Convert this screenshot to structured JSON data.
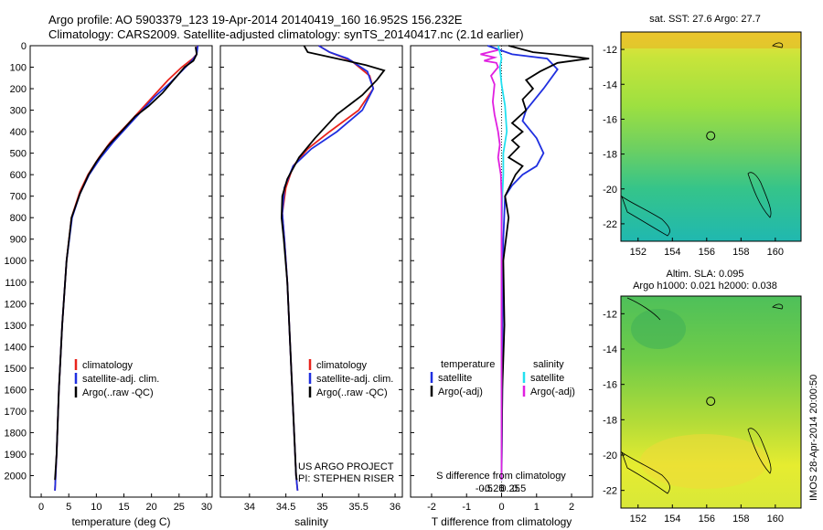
{
  "header": {
    "line1": "Argo profile: AO 5903379_123 19-Apr-2014 20140419_160 16.952S 156.232E",
    "line2": "Climatology: CARS2009. Satellite-adjusted climatology: synTS_20140417.nc (2.1d earlier)"
  },
  "credit": "IMOS 28-Apr-2014 20:00:50",
  "colors": {
    "climatology": "#e8231c",
    "satellite": "#1f2fe0",
    "argo": "#000000",
    "sal_satellite": "#22e0f0",
    "sal_argo": "#e020e0"
  },
  "chart_data": [
    {
      "type": "line",
      "panel": "temperature",
      "xlabel": "temperature (deg C)",
      "xlim": [
        -2,
        31
      ],
      "xticks": [
        0,
        5,
        10,
        15,
        20,
        25,
        30
      ],
      "ylim": [
        2100,
        0
      ],
      "yticks": [
        0,
        100,
        200,
        300,
        400,
        500,
        600,
        700,
        800,
        900,
        1000,
        1100,
        1200,
        1300,
        1400,
        1500,
        1600,
        1700,
        1800,
        1900,
        2000
      ],
      "legend": [
        "climatology",
        "satellite-adj. clim.",
        "Argo(..raw -QC)"
      ],
      "series": [
        {
          "name": "climatology",
          "color_key": "climatology",
          "points": [
            [
              28.3,
              0
            ],
            [
              28.2,
              40
            ],
            [
              27.5,
              60
            ],
            [
              25.5,
              100
            ],
            [
              23,
              160
            ],
            [
              20.5,
              230
            ],
            [
              18,
              300
            ],
            [
              15.5,
              370
            ],
            [
              12.5,
              450
            ],
            [
              10.5,
              520
            ],
            [
              8.5,
              600
            ],
            [
              7,
              680
            ],
            [
              5.5,
              800
            ],
            [
              4.6,
              1000
            ],
            [
              3.8,
              1300
            ],
            [
              3.2,
              1600
            ],
            [
              2.8,
              1900
            ],
            [
              2.5,
              2070
            ]
          ]
        },
        {
          "name": "satellite-adj. clim.",
          "color_key": "satellite",
          "points": [
            [
              28.4,
              0
            ],
            [
              28.2,
              40
            ],
            [
              27.3,
              70
            ],
            [
              25.8,
              110
            ],
            [
              23.5,
              170
            ],
            [
              20.5,
              240
            ],
            [
              18,
              310
            ],
            [
              15.5,
              380
            ],
            [
              13,
              450
            ],
            [
              10.8,
              520
            ],
            [
              8.7,
              600
            ],
            [
              7,
              690
            ],
            [
              5.6,
              800
            ],
            [
              4.6,
              1000
            ],
            [
              3.8,
              1300
            ],
            [
              3.2,
              1600
            ],
            [
              2.8,
              1900
            ],
            [
              2.5,
              2070
            ]
          ]
        },
        {
          "name": "Argo(..raw -QC)",
          "color_key": "argo",
          "points": [
            [
              28.0,
              5
            ],
            [
              28.2,
              40
            ],
            [
              27.6,
              70
            ],
            [
              26,
              100
            ],
            [
              24,
              160
            ],
            [
              22,
              220
            ],
            [
              19.5,
              280
            ],
            [
              17,
              330
            ],
            [
              14.5,
              400
            ],
            [
              12,
              470
            ],
            [
              10,
              540
            ],
            [
              8.6,
              600
            ],
            [
              7,
              690
            ],
            [
              5.5,
              800
            ],
            [
              4.6,
              1000
            ],
            [
              3.8,
              1300
            ],
            [
              3.2,
              1600
            ],
            [
              2.8,
              1900
            ],
            [
              2.5,
              2020
            ]
          ]
        }
      ]
    },
    {
      "type": "line",
      "panel": "salinity",
      "xlabel": "salinity",
      "xlim": [
        33.6,
        36.1
      ],
      "xticks": [
        34,
        34.5,
        35,
        35.5,
        36
      ],
      "ylim": [
        2100,
        0
      ],
      "legend": [
        "climatology",
        "satellite-adj. clim.",
        "Argo(..raw -QC)"
      ],
      "annotation": [
        "US ARGO PROJECT",
        "PI: STEPHEN RISER"
      ],
      "series": [
        {
          "name": "climatology",
          "color_key": "climatology",
          "points": [
            [
              34.95,
              0
            ],
            [
              35.1,
              30
            ],
            [
              35.4,
              70
            ],
            [
              35.65,
              140
            ],
            [
              35.7,
              200
            ],
            [
              35.5,
              300
            ],
            [
              35.1,
              400
            ],
            [
              34.8,
              480
            ],
            [
              34.6,
              560
            ],
            [
              34.5,
              660
            ],
            [
              34.45,
              780
            ],
            [
              34.48,
              900
            ],
            [
              34.52,
              1100
            ],
            [
              34.56,
              1400
            ],
            [
              34.6,
              1700
            ],
            [
              34.64,
              2000
            ],
            [
              34.66,
              2070
            ]
          ]
        },
        {
          "name": "satellite-adj. clim.",
          "color_key": "satellite",
          "points": [
            [
              34.95,
              0
            ],
            [
              35.1,
              30
            ],
            [
              35.35,
              60
            ],
            [
              35.62,
              120
            ],
            [
              35.7,
              200
            ],
            [
              35.55,
              300
            ],
            [
              35.2,
              400
            ],
            [
              34.85,
              480
            ],
            [
              34.6,
              560
            ],
            [
              34.48,
              660
            ],
            [
              34.45,
              780
            ],
            [
              34.48,
              900
            ],
            [
              34.52,
              1100
            ],
            [
              34.56,
              1400
            ],
            [
              34.6,
              1700
            ],
            [
              34.64,
              2000
            ],
            [
              34.66,
              2070
            ]
          ]
        },
        {
          "name": "Argo(..raw -QC)",
          "color_key": "argo",
          "points": [
            [
              34.75,
              0
            ],
            [
              34.8,
              30
            ],
            [
              35.2,
              60
            ],
            [
              35.6,
              90
            ],
            [
              35.85,
              115
            ],
            [
              35.75,
              160
            ],
            [
              35.55,
              230
            ],
            [
              35.2,
              320
            ],
            [
              34.9,
              430
            ],
            [
              34.68,
              520
            ],
            [
              34.52,
              620
            ],
            [
              34.45,
              700
            ],
            [
              34.44,
              800
            ],
            [
              34.47,
              900
            ],
            [
              34.52,
              1100
            ],
            [
              34.56,
              1400
            ],
            [
              34.6,
              1700
            ],
            [
              34.64,
              2000
            ],
            [
              34.65,
              2020
            ]
          ]
        }
      ]
    },
    {
      "type": "line",
      "panel": "difference",
      "xlabel": "T difference from climatology",
      "xlabel_top": "S difference from climatology",
      "xlim": [
        -2.6,
        2.6
      ],
      "xticks": [
        -2,
        -1,
        0,
        1,
        2
      ],
      "xticks_top": [
        -0.5,
        -0.25,
        0,
        0.25,
        0.5
      ],
      "ylim": [
        2100,
        0
      ],
      "legend_groups": [
        {
          "title": "temperature",
          "items": [
            "satellite",
            "Argo(-adj)"
          ]
        },
        {
          "title": "salinity",
          "items": [
            "satellite",
            "Argo(-adj)"
          ]
        }
      ],
      "series": [
        {
          "name": "temperature satellite",
          "color_key": "satellite",
          "points": [
            [
              -0.4,
              0
            ],
            [
              0.3,
              40
            ],
            [
              1.3,
              60
            ],
            [
              1.6,
              110
            ],
            [
              1.2,
              200
            ],
            [
              0.7,
              300
            ],
            [
              0.6,
              350
            ],
            [
              1.0,
              430
            ],
            [
              1.2,
              500
            ],
            [
              1.0,
              560
            ],
            [
              0.6,
              600
            ],
            [
              0.3,
              650
            ],
            [
              0.1,
              700
            ],
            [
              0.05,
              900
            ],
            [
              0.03,
              1200
            ],
            [
              0.02,
              1600
            ],
            [
              0,
              2020
            ]
          ]
        },
        {
          "name": "temperature Argo(-adj)",
          "color_key": "argo",
          "points": [
            [
              0.2,
              0
            ],
            [
              0.9,
              30
            ],
            [
              1.5,
              40
            ],
            [
              2.5,
              60
            ],
            [
              1.6,
              80
            ],
            [
              1.1,
              120
            ],
            [
              0.7,
              160
            ],
            [
              0.9,
              200
            ],
            [
              0.6,
              250
            ],
            [
              0.7,
              300
            ],
            [
              0.3,
              360
            ],
            [
              0.6,
              400
            ],
            [
              0.3,
              440
            ],
            [
              0.5,
              470
            ],
            [
              0.2,
              520
            ],
            [
              0.6,
              560
            ],
            [
              0.4,
              600
            ],
            [
              0.1,
              700
            ],
            [
              0.2,
              800
            ],
            [
              0.05,
              1000
            ],
            [
              0.08,
              1300
            ],
            [
              0.02,
              1600
            ],
            [
              0,
              2000
            ]
          ]
        },
        {
          "name": "salinity satellite",
          "color_key": "sal_satellite",
          "points": [
            [
              -0.1,
              0
            ],
            [
              0.0,
              60
            ],
            [
              -0.05,
              100
            ],
            [
              0.0,
              180
            ],
            [
              0.1,
              280
            ],
            [
              0.15,
              400
            ],
            [
              0.1,
              450
            ],
            [
              0.05,
              500
            ],
            [
              0.05,
              600
            ],
            [
              0.02,
              700
            ],
            [
              0.0,
              900
            ],
            [
              0.0,
              1200
            ],
            [
              0,
              2020
            ]
          ]
        },
        {
          "name": "salinity Argo(-adj)",
          "color_key": "sal_argo",
          "points": [
            [
              -0.1,
              20
            ],
            [
              -0.6,
              40
            ],
            [
              -0.2,
              55
            ],
            [
              -0.5,
              70
            ],
            [
              -0.15,
              80
            ],
            [
              -0.1,
              100
            ],
            [
              -0.3,
              140
            ],
            [
              -0.2,
              180
            ],
            [
              -0.25,
              260
            ],
            [
              -0.2,
              320
            ],
            [
              -0.1,
              400
            ],
            [
              -0.05,
              460
            ],
            [
              -0.1,
              520
            ],
            [
              -0.02,
              600
            ],
            [
              0,
              700
            ],
            [
              0,
              900
            ],
            [
              0,
              2020
            ]
          ]
        }
      ]
    },
    {
      "type": "heatmap",
      "panel": "sst_map",
      "title": "sat. SST: 27.6 Argo: 27.7",
      "xlim": [
        151,
        161.5
      ],
      "ylim": [
        -23,
        -11
      ],
      "xticks": [
        152,
        154,
        156,
        158,
        160
      ],
      "yticks": [
        -12,
        -14,
        -16,
        -18,
        -20,
        -22
      ],
      "marker": {
        "lon": 156.232,
        "lat": -16.952
      }
    },
    {
      "type": "heatmap",
      "panel": "sla_map",
      "title_lines": [
        "Altim. SLA: 0.095",
        "Argo h1000: 0.021 h2000: 0.038"
      ],
      "xlim": [
        151,
        161.5
      ],
      "ylim": [
        -23,
        -11
      ],
      "xticks": [
        152,
        154,
        156,
        158,
        160
      ],
      "yticks": [
        -12,
        -14,
        -16,
        -18,
        -20,
        -22
      ],
      "marker": {
        "lon": 156.232,
        "lat": -16.952
      }
    }
  ]
}
